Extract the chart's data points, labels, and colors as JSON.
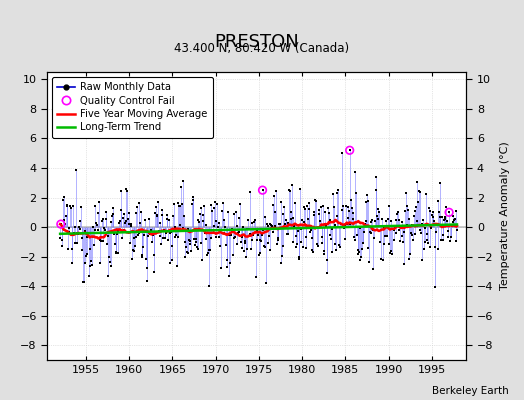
{
  "title": "PRESTON",
  "subtitle": "43.400 N, 80.420 W (Canada)",
  "ylabel": "Temperature Anomaly (°C)",
  "credit": "Berkeley Earth",
  "xlim": [
    1950.5,
    1999.0
  ],
  "ylim": [
    -9.0,
    10.5
  ],
  "yticks": [
    -8,
    -6,
    -4,
    -2,
    0,
    2,
    4,
    6,
    8,
    10
  ],
  "xticks": [
    1955,
    1960,
    1965,
    1970,
    1975,
    1980,
    1985,
    1990,
    1995
  ],
  "bg_color": "#e0e0e0",
  "plot_bg_color": "#ffffff",
  "line_color": "#0000cc",
  "stem_color": "#6666ff",
  "dot_color": "#000000",
  "ma_color": "#ff0000",
  "trend_color": "#00bb00",
  "qc_color": "#ff00ff",
  "start_year": 1952,
  "end_year": 1997,
  "seed": 12345,
  "qc_fail_times": [
    1952.1,
    1975.4,
    1985.5,
    1997.0
  ],
  "qc_fail_values": [
    0.2,
    2.5,
    5.2,
    1.0
  ],
  "ma_window": 60,
  "figwidth": 5.24,
  "figheight": 4.0,
  "dpi": 100
}
